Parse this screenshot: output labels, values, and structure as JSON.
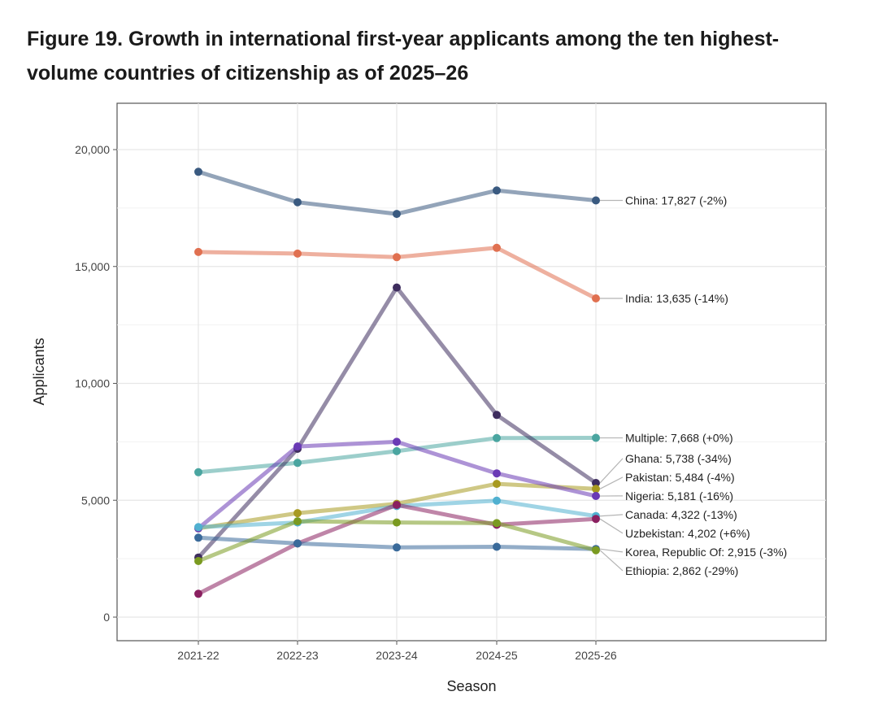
{
  "figure": {
    "title_line1": "Figure 19. Growth in international first-year applicants among the ten highest-",
    "title_line2": "volume countries of citizenship as of 2025–26"
  },
  "chart_data": {
    "type": "line",
    "title": "Figure 19. Growth in international first-year applicants among the ten highest-volume countries of citizenship as of 2025–26",
    "xlabel": "Season",
    "ylabel": "Applicants",
    "categories": [
      "2021-22",
      "2022-23",
      "2023-24",
      "2024-25",
      "2025-26"
    ],
    "ylim": [
      -1000,
      22000
    ],
    "yticks": [
      0,
      5000,
      10000,
      15000,
      20000
    ],
    "ytick_labels": [
      "0",
      "5,000",
      "10,000",
      "15,000",
      "20,000"
    ],
    "grid": true,
    "legend": "direct labels at right end of each line",
    "series": [
      {
        "name": "China",
        "label": "China: 17,827 (-2%)",
        "color": "#3a5a80",
        "values": [
          19050,
          17750,
          17250,
          18250,
          17827
        ]
      },
      {
        "name": "India",
        "label": "India: 13,635 (-14%)",
        "color": "#e07050",
        "values": [
          15620,
          15550,
          15400,
          15800,
          13635
        ]
      },
      {
        "name": "Multiple",
        "label": "Multiple: 7,668 (+0%)",
        "color": "#4aa5a0",
        "values": [
          6200,
          6600,
          7100,
          7660,
          7668
        ]
      },
      {
        "name": "Ghana",
        "label": "Ghana: 5,738 (-34%)",
        "color": "#3e2d5e",
        "values": [
          2550,
          7200,
          14100,
          8650,
          5738
        ]
      },
      {
        "name": "Pakistan",
        "label": "Pakistan: 5,484 (-4%)",
        "color": "#a89a20",
        "values": [
          3800,
          4450,
          4850,
          5700,
          5484
        ]
      },
      {
        "name": "Nigeria",
        "label": "Nigeria: 5,181 (-16%)",
        "color": "#6a3ab5",
        "values": [
          3800,
          7300,
          7500,
          6150,
          5181
        ]
      },
      {
        "name": "Canada",
        "label": "Canada: 4,322 (-13%)",
        "color": "#50b0d0",
        "values": [
          3850,
          4050,
          4750,
          4980,
          4322
        ]
      },
      {
        "name": "Uzbekistan",
        "label": "Uzbekistan: 4,202 (+6%)",
        "color": "#8a2060",
        "values": [
          1000,
          3150,
          4800,
          3950,
          4202
        ]
      },
      {
        "name": "Korea, Republic Of",
        "label": "Korea, Republic Of: 2,915 (-3%)",
        "color": "#3a6a9a",
        "values": [
          3400,
          3150,
          2980,
          3010,
          2915
        ]
      },
      {
        "name": "Ethiopia",
        "label": "Ethiopia: 2,862 (-29%)",
        "color": "#7a9a20",
        "values": [
          2400,
          4100,
          4050,
          4020,
          2862
        ]
      }
    ]
  }
}
